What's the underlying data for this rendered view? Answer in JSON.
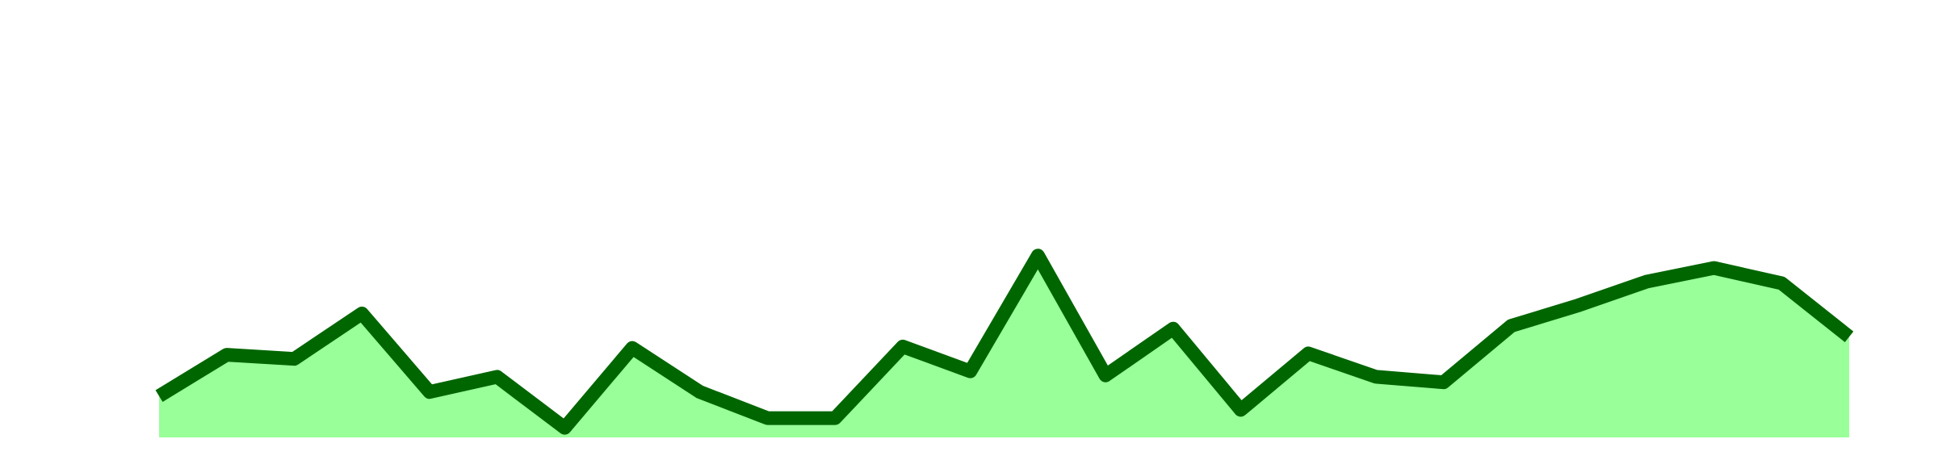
{
  "chart_data": {
    "type": "area",
    "title": "",
    "xlabel": "",
    "ylabel": "",
    "x": [
      1,
      2,
      3,
      4,
      5,
      6,
      7,
      8,
      9,
      10,
      11,
      12,
      13,
      14,
      15,
      16,
      17,
      18,
      19,
      20,
      21,
      22,
      23,
      24,
      25,
      26
    ],
    "series": [
      {
        "values": [
          3.0,
          6.0,
          5.7,
          9.0,
          3.3,
          4.4,
          0.7,
          6.5,
          3.3,
          1.4,
          1.4,
          6.6,
          4.8,
          13.2,
          4.5,
          7.9,
          2.0,
          6.1,
          4.4,
          4.0,
          8.1,
          9.6,
          11.3,
          12.3,
          11.2,
          7.3
        ],
        "line_color": "#006600",
        "fill_color": "#99ff99"
      }
    ],
    "ylim": [
      0,
      30
    ],
    "grid": false,
    "legend": "none",
    "axes_visible": false
  }
}
